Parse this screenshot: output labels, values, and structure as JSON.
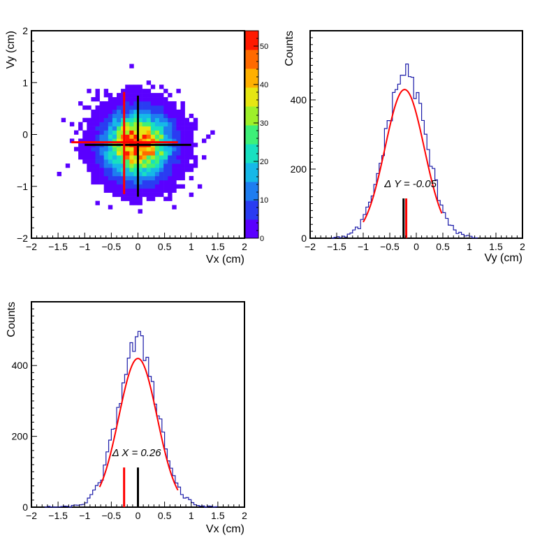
{
  "chart_data": [
    {
      "type": "heatmap",
      "xlabel": "Vx (cm)",
      "ylabel": "Vy (cm)",
      "xlim": [
        -2,
        2
      ],
      "ylim": [
        -2,
        2
      ],
      "x_ticks": [
        "-2",
        "-1.5",
        "-1",
        "-0.5",
        "0",
        "0.5",
        "1",
        "1.5",
        "2"
      ],
      "y_ticks": [
        "-2",
        "-1",
        "0",
        "1",
        "2"
      ],
      "colorbar": {
        "range": [
          0,
          54
        ],
        "ticks": [
          "0",
          "10",
          "20",
          "30",
          "40",
          "50"
        ],
        "colors": [
          "#5a00ff",
          "#2a3cf2",
          "#1e7df0",
          "#16b8e8",
          "#18e0c0",
          "#3ef078",
          "#9ef02a",
          "#e6e612",
          "#ffb000",
          "#ff6a00",
          "#ff1a00"
        ]
      },
      "distribution": {
        "center_x": 0.0,
        "center_y": -0.2,
        "sigma_x": 0.38,
        "sigma_y": 0.38,
        "peak": 53,
        "bin_width": 0.08
      },
      "markers": {
        "true_vertex": {
          "x": 0.0,
          "y": -0.2,
          "x_range": [
            -1.0,
            1.0
          ],
          "y_range": [
            -1.2,
            0.75
          ],
          "color": "#000000"
        },
        "fitted_vertex": {
          "x": -0.26,
          "y": -0.15,
          "x_range": [
            -1.25,
            0.75
          ],
          "y_range": [
            -1.15,
            0.82
          ],
          "color": "#ff0000"
        }
      }
    },
    {
      "type": "line",
      "xlabel": "Vy (cm)",
      "ylabel": "Counts",
      "xlim": [
        -2,
        2
      ],
      "ylim": [
        0,
        600
      ],
      "x_ticks": [
        "-2",
        "-1.5",
        "-1",
        "-0.5",
        "0",
        "0.5",
        "1",
        "1.5",
        "2"
      ],
      "y_ticks": [
        "0",
        "200",
        "400"
      ],
      "annotation": "Δ Y = -0.05",
      "histogram": {
        "center": -0.2,
        "sigma": 0.38,
        "peak": 470,
        "range": [
          -1.6,
          1.15
        ],
        "bin_width": 0.05,
        "color": "#1a1aa8"
      },
      "fit": {
        "center": -0.22,
        "sigma": 0.37,
        "amplitude": 430,
        "range": [
          -1.0,
          0.48
        ],
        "color": "#ff0000"
      },
      "markers": {
        "black_x": -0.24,
        "red_x": -0.19,
        "height": 115
      }
    },
    {
      "type": "line",
      "xlabel": "Vx (cm)",
      "ylabel": "Counts",
      "xlim": [
        -2,
        2
      ],
      "ylim": [
        0,
        580
      ],
      "x_ticks": [
        "-2",
        "-1.5",
        "-1",
        "-0.5",
        "0",
        "0.5",
        "1",
        "1.5",
        "2"
      ],
      "y_ticks": [
        "0",
        "200",
        "400"
      ],
      "annotation": "Δ X = 0.26",
      "histogram": {
        "center": 0.0,
        "sigma": 0.37,
        "peak": 455,
        "range": [
          -1.75,
          1.5
        ],
        "bin_width": 0.05,
        "color": "#1a1aa8"
      },
      "fit": {
        "center": 0.0,
        "sigma": 0.36,
        "amplitude": 420,
        "range": [
          -0.72,
          0.75
        ],
        "color": "#ff0000"
      },
      "markers": {
        "black_x": 0.0,
        "red_x": -0.26,
        "height": 112
      }
    }
  ]
}
